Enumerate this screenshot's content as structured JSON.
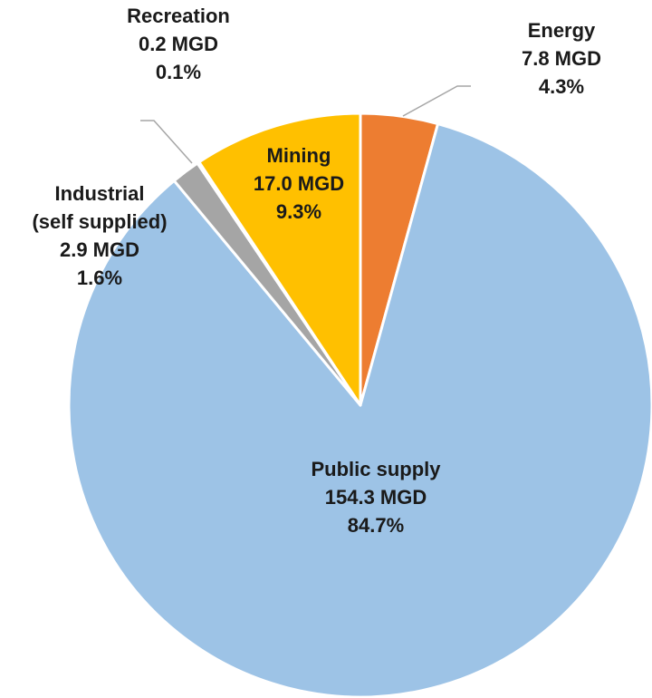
{
  "chart_data": {
    "type": "pie",
    "categories": [
      "Energy",
      "Public supply",
      "Industrial\n(self supplied)",
      "Recreation",
      "Mining"
    ],
    "values": [
      7.8,
      154.3,
      2.9,
      0.2,
      17.0
    ],
    "value_labels": [
      "7.8 MGD",
      "154.3 MGD",
      "2.9 MGD",
      "0.2 MGD",
      "17.0 MGD"
    ],
    "percents": [
      4.3,
      84.7,
      1.6,
      0.1,
      9.3
    ],
    "percent_labels": [
      "4.3%",
      "84.7%",
      "1.6%",
      "0.1%",
      "9.3%"
    ],
    "colors": [
      "#ed7d31",
      "#9dc3e6",
      "#a5a5a5",
      "#4472c4",
      "#ffc000"
    ]
  }
}
